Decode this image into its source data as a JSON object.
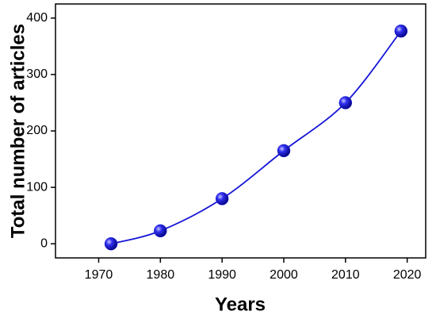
{
  "chart_data": {
    "type": "scatter",
    "x_label": "Years",
    "y_label": "Total number of articles",
    "x": [
      1972,
      1980,
      1990,
      2000,
      2010,
      2019
    ],
    "values": [
      0,
      23,
      80,
      165,
      250,
      377
    ],
    "color": "#1414d8",
    "xlim": [
      1963,
      2023
    ],
    "xticks": [
      1970,
      1980,
      1990,
      2000,
      2010,
      2020
    ],
    "ylim": [
      -25,
      425
    ],
    "yticks": [
      0,
      100,
      200,
      300,
      400
    ],
    "fit_line": true
  }
}
